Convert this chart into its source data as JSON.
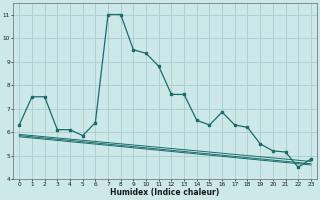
{
  "xlabel": "Humidex (Indice chaleur)",
  "bg_color": "#cce8e8",
  "grid_color": "#aacccc",
  "line_color": "#1a6b6b",
  "xlim": [
    -0.5,
    23.5
  ],
  "ylim": [
    4,
    11.5
  ],
  "yticks": [
    4,
    5,
    6,
    7,
    8,
    9,
    10,
    11
  ],
  "xticks": [
    0,
    1,
    2,
    3,
    4,
    5,
    6,
    7,
    8,
    9,
    10,
    11,
    12,
    13,
    14,
    15,
    16,
    17,
    18,
    19,
    20,
    21,
    22,
    23
  ],
  "series1_x": [
    0,
    1,
    2,
    3,
    4,
    5,
    6,
    7,
    8,
    9,
    10,
    11,
    12,
    13,
    14,
    15,
    16,
    17,
    18,
    19,
    20,
    21,
    22,
    23
  ],
  "series1_y": [
    6.3,
    7.5,
    7.5,
    6.1,
    6.1,
    5.85,
    6.4,
    11.0,
    11.0,
    9.5,
    9.35,
    8.8,
    7.6,
    7.6,
    6.5,
    6.3,
    6.85,
    6.3,
    6.2,
    5.5,
    5.2,
    5.15,
    4.5,
    4.85
  ],
  "series2_x": [
    0,
    23
  ],
  "series2_y": [
    5.9,
    4.75
  ],
  "series3_x": [
    0,
    23
  ],
  "series3_y": [
    5.85,
    4.65
  ],
  "series4_x": [
    0,
    23
  ],
  "series4_y": [
    5.8,
    4.6
  ]
}
